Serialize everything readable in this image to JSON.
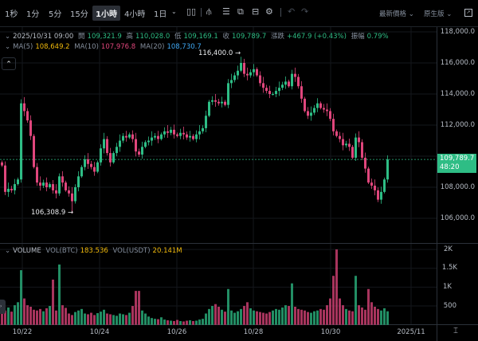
{
  "toolbar": {
    "intervals": [
      "1秒",
      "1分",
      "5分",
      "15分",
      "1小時",
      "4小時",
      "1日"
    ],
    "active_interval": "1小時",
    "price_type": "最新價格",
    "version": "原生版",
    "icons": [
      "chevron-down-icon",
      "candle-type-icon",
      "indicators-icon",
      "list-icon",
      "drawing-icon",
      "template-icon",
      "settings-icon",
      "undo-icon",
      "redo-icon",
      "fullscreen-icon"
    ]
  },
  "ohlc_legend": {
    "datetime": "2025/10/31 09:00",
    "open_label": "開",
    "open": "109,321.9",
    "high_label": "高",
    "high": "110,028.0",
    "low_label": "低",
    "low": "109,169.1",
    "close_label": "收",
    "close": "109,789.7",
    "change_label": "漲跌",
    "change": "+467.9 (+0.43%)",
    "amplitude_label": "振幅",
    "amplitude": "0.79%"
  },
  "ma_legend": {
    "ma5_label": "MA(5)",
    "ma5": "108,649.2",
    "ma10_label": "MA(10)",
    "ma10": "107,976.8",
    "ma20_label": "MA(20)",
    "ma20": "108,730.7"
  },
  "volume_legend": {
    "title": "VOLUME",
    "btc_label": "VOL(BTC)",
    "btc": "183.536",
    "usdt_label": "VOL(USDT)",
    "usdt": "20.141M"
  },
  "current_price": {
    "price": "109,789.7",
    "countdown": "48:20"
  },
  "colors": {
    "up": "#2ebd85",
    "down": "#e0467c",
    "price_tag": "#2ebd85",
    "background": "#000000"
  },
  "chart_data": {
    "type": "candlestick",
    "price_axis": {
      "ylim": [
        105000,
        119000
      ],
      "ticks": [
        "118,000.0",
        "116,000.0",
        "114,000.0",
        "112,000.0",
        "110,000.0",
        "108,000.0",
        "106,000.0"
      ],
      "tick_values": [
        118000,
        116000,
        114000,
        112000,
        110000,
        108000,
        106000
      ]
    },
    "volume_axis": {
      "ylim": [
        0,
        2200
      ],
      "ticks": [
        "2K",
        "1.5K",
        "1K",
        "500"
      ],
      "tick_values": [
        2000,
        1500,
        1000,
        500
      ]
    },
    "x_ticks": [
      "10/22",
      "10/24",
      "10/26",
      "10/28",
      "10/30",
      "2025/11"
    ],
    "annotations": {
      "max": {
        "label": "116,400.0",
        "value": 116400
      },
      "min": {
        "label": "106,308.9",
        "value": 106308.9
      }
    },
    "first_open": 109600,
    "close": [
      109400,
      107700,
      107900,
      107800,
      108200,
      108500,
      113400,
      112900,
      112300,
      111300,
      109300,
      108300,
      108100,
      108300,
      108000,
      108200,
      107800,
      107600,
      108700,
      108300,
      107800,
      107600,
      107100,
      108000,
      108700,
      109300,
      109800,
      109500,
      109300,
      109000,
      109600,
      110500,
      111100,
      110200,
      109600,
      110200,
      110600,
      111000,
      111300,
      111200,
      111400,
      111100,
      110300,
      110100,
      110600,
      110900,
      111000,
      111200,
      111300,
      111100,
      111400,
      111600,
      111500,
      111700,
      111400,
      111300,
      111500,
      111400,
      111200,
      111300,
      111100,
      111400,
      111600,
      111800,
      112600,
      113500,
      113600,
      113500,
      113400,
      113500,
      113300,
      114700,
      114900,
      115200,
      115500,
      116000,
      115300,
      115200,
      115400,
      115600,
      115200,
      114700,
      114400,
      114200,
      114000,
      114000,
      114200,
      114400,
      114600,
      114800,
      114500,
      115300,
      115100,
      114500,
      113700,
      112900,
      112600,
      112800,
      113100,
      113400,
      113100,
      113000,
      112900,
      112400,
      111600,
      111300,
      111100,
      110700,
      110800,
      110600,
      109900,
      111200,
      110900,
      109900,
      109200,
      108300,
      108100,
      107800,
      107200,
      107700,
      108500,
      109789.7
    ],
    "volume": [
      420,
      380,
      460,
      350,
      520,
      600,
      1450,
      700,
      520,
      480,
      400,
      380,
      420,
      360,
      440,
      500,
      1200,
      380,
      1600,
      520,
      450,
      300,
      260,
      340,
      380,
      420,
      300,
      280,
      320,
      260,
      310,
      350,
      400,
      300,
      280,
      260,
      240,
      300,
      280,
      260,
      320,
      500,
      900,
      900,
      380,
      300,
      220,
      180,
      160,
      150,
      200,
      140,
      120,
      110,
      100,
      130,
      100,
      90,
      110,
      120,
      100,
      110,
      140,
      160,
      300,
      420,
      500,
      550,
      480,
      400,
      350,
      950,
      380,
      320,
      360,
      420,
      500,
      600,
      440,
      380,
      360,
      340,
      320,
      300,
      340,
      380,
      420,
      400,
      460,
      520,
      500,
      1100,
      480,
      420,
      400,
      380,
      340,
      320,
      360,
      380,
      420,
      400,
      520,
      700,
      1300,
      2000,
      700,
      520,
      420,
      380,
      360,
      1300,
      520,
      460,
      400,
      950,
      600,
      480,
      420,
      380,
      440,
      360
    ]
  }
}
